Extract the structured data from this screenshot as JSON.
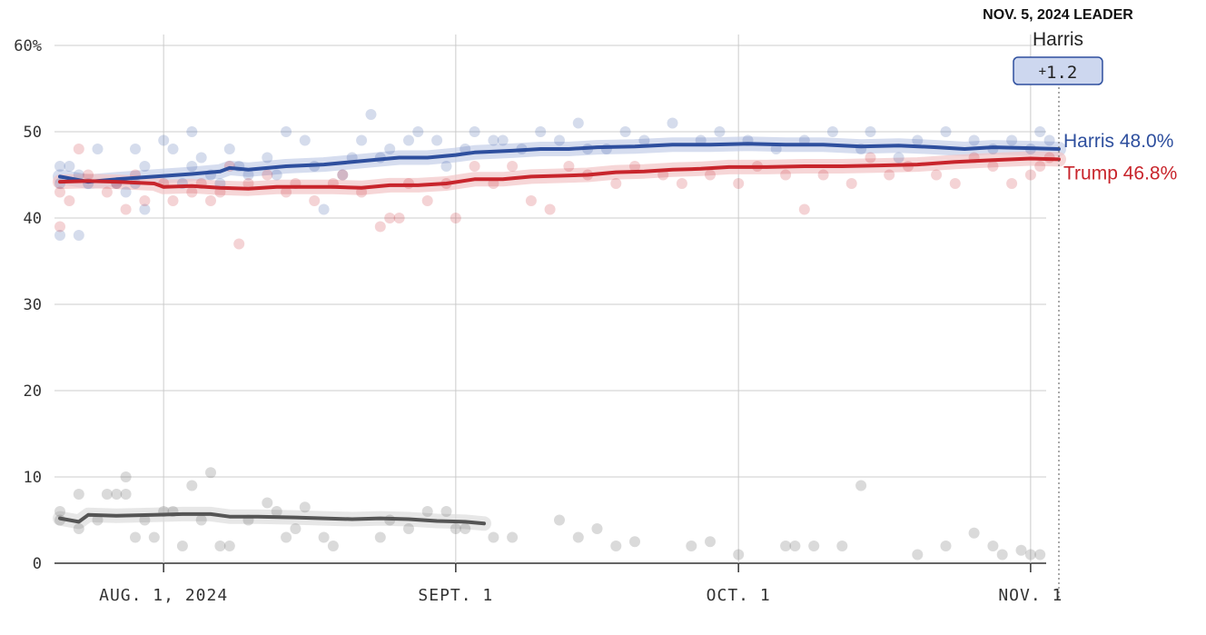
{
  "leader": {
    "heading": "NOV. 5, 2024 LEADER",
    "name": "Harris",
    "margin_sign": "+",
    "margin_value": "1.2"
  },
  "chart_data": {
    "type": "line",
    "title": "",
    "xlabel": "",
    "ylabel": "",
    "x_start": "2024-07-21",
    "x_end": "2024-11-04",
    "ylim": [
      0,
      60
    ],
    "y_ticks": [
      0,
      10,
      20,
      30,
      40,
      50,
      60
    ],
    "y_tick_labels": [
      "0",
      "10",
      "20",
      "30",
      "40",
      "50",
      "60%"
    ],
    "x_ticks": [
      {
        "date": "2024-08-01",
        "label": "AUG. 1, 2024"
      },
      {
        "date": "2024-09-01",
        "label": "SEPT. 1"
      },
      {
        "date": "2024-10-01",
        "label": "OCT. 1"
      },
      {
        "date": "2024-11-01",
        "label": "NOV. 1"
      }
    ],
    "grid": true,
    "series": [
      {
        "name": "Harris",
        "end_label": "Harris 48.0%",
        "color": "#2e4f9e",
        "band_color": "#c5cfe8",
        "points": [
          [
            "2024-07-21",
            44.8
          ],
          [
            "2024-07-24",
            44.2
          ],
          [
            "2024-07-27",
            44.5
          ],
          [
            "2024-07-31",
            44.8
          ],
          [
            "2024-08-04",
            45.1
          ],
          [
            "2024-08-07",
            45.4
          ],
          [
            "2024-08-08",
            45.8
          ],
          [
            "2024-08-10",
            45.6
          ],
          [
            "2024-08-14",
            46.0
          ],
          [
            "2024-08-18",
            46.2
          ],
          [
            "2024-08-21",
            46.5
          ],
          [
            "2024-08-24",
            46.8
          ],
          [
            "2024-08-26",
            47.0
          ],
          [
            "2024-08-29",
            47.0
          ],
          [
            "2024-09-01",
            47.3
          ],
          [
            "2024-09-03",
            47.6
          ],
          [
            "2024-09-07",
            47.8
          ],
          [
            "2024-09-10",
            48.0
          ],
          [
            "2024-09-13",
            48.0
          ],
          [
            "2024-09-16",
            48.2
          ],
          [
            "2024-09-20",
            48.3
          ],
          [
            "2024-09-24",
            48.5
          ],
          [
            "2024-09-28",
            48.5
          ],
          [
            "2024-10-02",
            48.6
          ],
          [
            "2024-10-06",
            48.5
          ],
          [
            "2024-10-10",
            48.5
          ],
          [
            "2024-10-14",
            48.3
          ],
          [
            "2024-10-18",
            48.4
          ],
          [
            "2024-10-22",
            48.2
          ],
          [
            "2024-10-25",
            48.0
          ],
          [
            "2024-10-28",
            48.2
          ],
          [
            "2024-11-01",
            48.1
          ],
          [
            "2024-11-04",
            48.0
          ]
        ],
        "polls": [
          [
            "2024-07-21",
            46
          ],
          [
            "2024-07-21",
            44
          ],
          [
            "2024-07-21",
            38
          ],
          [
            "2024-07-22",
            46
          ],
          [
            "2024-07-23",
            45
          ],
          [
            "2024-07-23",
            38
          ],
          [
            "2024-07-24",
            44
          ],
          [
            "2024-07-25",
            48
          ],
          [
            "2024-07-27",
            44
          ],
          [
            "2024-07-28",
            43
          ],
          [
            "2024-07-29",
            48
          ],
          [
            "2024-07-29",
            44
          ],
          [
            "2024-07-30",
            46
          ],
          [
            "2024-07-30",
            41
          ],
          [
            "2024-08-01",
            49
          ],
          [
            "2024-08-02",
            48
          ],
          [
            "2024-08-03",
            44
          ],
          [
            "2024-08-04",
            50
          ],
          [
            "2024-08-04",
            46
          ],
          [
            "2024-08-05",
            47
          ],
          [
            "2024-08-06",
            45
          ],
          [
            "2024-08-07",
            44
          ],
          [
            "2024-08-08",
            48
          ],
          [
            "2024-08-09",
            46
          ],
          [
            "2024-08-10",
            45
          ],
          [
            "2024-08-12",
            47
          ],
          [
            "2024-08-13",
            45
          ],
          [
            "2024-08-14",
            50
          ],
          [
            "2024-08-16",
            49
          ],
          [
            "2024-08-17",
            46
          ],
          [
            "2024-08-18",
            41
          ],
          [
            "2024-08-20",
            45
          ],
          [
            "2024-08-21",
            47
          ],
          [
            "2024-08-22",
            49
          ],
          [
            "2024-08-23",
            52
          ],
          [
            "2024-08-24",
            47
          ],
          [
            "2024-08-25",
            48
          ],
          [
            "2024-08-27",
            49
          ],
          [
            "2024-08-28",
            50
          ],
          [
            "2024-08-30",
            49
          ],
          [
            "2024-08-31",
            46
          ],
          [
            "2024-09-02",
            48
          ],
          [
            "2024-09-03",
            50
          ],
          [
            "2024-09-05",
            49
          ],
          [
            "2024-09-06",
            49
          ],
          [
            "2024-09-08",
            48
          ],
          [
            "2024-09-10",
            50
          ],
          [
            "2024-09-12",
            49
          ],
          [
            "2024-09-14",
            51
          ],
          [
            "2024-09-15",
            48
          ],
          [
            "2024-09-17",
            48
          ],
          [
            "2024-09-19",
            50
          ],
          [
            "2024-09-21",
            49
          ],
          [
            "2024-09-24",
            51
          ],
          [
            "2024-09-27",
            49
          ],
          [
            "2024-09-29",
            50
          ],
          [
            "2024-10-02",
            49
          ],
          [
            "2024-10-05",
            48
          ],
          [
            "2024-10-08",
            49
          ],
          [
            "2024-10-11",
            50
          ],
          [
            "2024-10-14",
            48
          ],
          [
            "2024-10-15",
            50
          ],
          [
            "2024-10-18",
            47
          ],
          [
            "2024-10-20",
            49
          ],
          [
            "2024-10-23",
            50
          ],
          [
            "2024-10-26",
            49
          ],
          [
            "2024-10-28",
            48
          ],
          [
            "2024-10-30",
            49
          ],
          [
            "2024-11-01",
            48
          ],
          [
            "2024-11-02",
            50
          ],
          [
            "2024-11-03",
            49
          ]
        ]
      },
      {
        "name": "Trump",
        "end_label": "Trump 46.8%",
        "color": "#c8252c",
        "band_color": "#f2c4c6",
        "points": [
          [
            "2024-07-21",
            44.2
          ],
          [
            "2024-07-24",
            44.3
          ],
          [
            "2024-07-27",
            44.2
          ],
          [
            "2024-07-31",
            44.0
          ],
          [
            "2024-08-01",
            43.6
          ],
          [
            "2024-08-04",
            43.7
          ],
          [
            "2024-08-07",
            43.5
          ],
          [
            "2024-08-10",
            43.4
          ],
          [
            "2024-08-13",
            43.6
          ],
          [
            "2024-08-16",
            43.6
          ],
          [
            "2024-08-19",
            43.6
          ],
          [
            "2024-08-22",
            43.5
          ],
          [
            "2024-08-25",
            43.8
          ],
          [
            "2024-08-28",
            43.8
          ],
          [
            "2024-08-31",
            44.0
          ],
          [
            "2024-09-03",
            44.5
          ],
          [
            "2024-09-06",
            44.5
          ],
          [
            "2024-09-09",
            44.8
          ],
          [
            "2024-09-12",
            44.9
          ],
          [
            "2024-09-15",
            45.0
          ],
          [
            "2024-09-18",
            45.3
          ],
          [
            "2024-09-21",
            45.4
          ],
          [
            "2024-09-24",
            45.6
          ],
          [
            "2024-09-27",
            45.7
          ],
          [
            "2024-09-30",
            45.9
          ],
          [
            "2024-10-04",
            45.9
          ],
          [
            "2024-10-08",
            46.0
          ],
          [
            "2024-10-12",
            46.0
          ],
          [
            "2024-10-16",
            46.1
          ],
          [
            "2024-10-20",
            46.2
          ],
          [
            "2024-10-24",
            46.5
          ],
          [
            "2024-10-28",
            46.7
          ],
          [
            "2024-11-01",
            46.9
          ],
          [
            "2024-11-04",
            46.8
          ]
        ],
        "polls": [
          [
            "2024-07-21",
            43
          ],
          [
            "2024-07-21",
            39
          ],
          [
            "2024-07-22",
            42
          ],
          [
            "2024-07-23",
            48
          ],
          [
            "2024-07-24",
            45
          ],
          [
            "2024-07-26",
            43
          ],
          [
            "2024-07-27",
            44
          ],
          [
            "2024-07-28",
            41
          ],
          [
            "2024-07-29",
            45
          ],
          [
            "2024-07-30",
            42
          ],
          [
            "2024-08-01",
            44
          ],
          [
            "2024-08-02",
            42
          ],
          [
            "2024-08-04",
            43
          ],
          [
            "2024-08-05",
            44
          ],
          [
            "2024-08-06",
            42
          ],
          [
            "2024-08-07",
            43
          ],
          [
            "2024-08-08",
            46
          ],
          [
            "2024-08-09",
            37
          ],
          [
            "2024-08-10",
            44
          ],
          [
            "2024-08-12",
            45
          ],
          [
            "2024-08-14",
            43
          ],
          [
            "2024-08-15",
            44
          ],
          [
            "2024-08-17",
            42
          ],
          [
            "2024-08-19",
            44
          ],
          [
            "2024-08-20",
            45
          ],
          [
            "2024-08-22",
            43
          ],
          [
            "2024-08-24",
            39
          ],
          [
            "2024-08-25",
            40
          ],
          [
            "2024-08-26",
            40
          ],
          [
            "2024-08-27",
            44
          ],
          [
            "2024-08-29",
            42
          ],
          [
            "2024-08-31",
            44
          ],
          [
            "2024-09-01",
            40
          ],
          [
            "2024-09-03",
            46
          ],
          [
            "2024-09-05",
            44
          ],
          [
            "2024-09-07",
            46
          ],
          [
            "2024-09-09",
            42
          ],
          [
            "2024-09-11",
            41
          ],
          [
            "2024-09-13",
            46
          ],
          [
            "2024-09-15",
            45
          ],
          [
            "2024-09-18",
            44
          ],
          [
            "2024-09-20",
            46
          ],
          [
            "2024-09-23",
            45
          ],
          [
            "2024-09-25",
            44
          ],
          [
            "2024-09-28",
            45
          ],
          [
            "2024-10-01",
            44
          ],
          [
            "2024-10-03",
            46
          ],
          [
            "2024-10-06",
            45
          ],
          [
            "2024-10-08",
            41
          ],
          [
            "2024-10-10",
            45
          ],
          [
            "2024-10-13",
            44
          ],
          [
            "2024-10-15",
            47
          ],
          [
            "2024-10-17",
            45
          ],
          [
            "2024-10-19",
            46
          ],
          [
            "2024-10-22",
            45
          ],
          [
            "2024-10-24",
            44
          ],
          [
            "2024-10-26",
            47
          ],
          [
            "2024-10-28",
            46
          ],
          [
            "2024-10-30",
            44
          ],
          [
            "2024-11-01",
            45
          ],
          [
            "2024-11-02",
            46
          ],
          [
            "2024-11-03",
            47
          ]
        ]
      },
      {
        "name": "",
        "color": "#555555",
        "band_color": "#dddddd",
        "points": [
          [
            "2024-07-21",
            5.2
          ],
          [
            "2024-07-23",
            4.8
          ],
          [
            "2024-07-24",
            5.6
          ],
          [
            "2024-07-27",
            5.5
          ],
          [
            "2024-07-31",
            5.6
          ],
          [
            "2024-08-03",
            5.7
          ],
          [
            "2024-08-06",
            5.7
          ],
          [
            "2024-08-08",
            5.4
          ],
          [
            "2024-08-11",
            5.4
          ],
          [
            "2024-08-15",
            5.3
          ],
          [
            "2024-08-18",
            5.2
          ],
          [
            "2024-08-21",
            5.1
          ],
          [
            "2024-08-24",
            5.2
          ],
          [
            "2024-08-27",
            5.1
          ],
          [
            "2024-08-30",
            4.9
          ],
          [
            "2024-09-02",
            4.8
          ],
          [
            "2024-09-04",
            4.6
          ]
        ],
        "polls": [
          [
            "2024-07-21",
            6
          ],
          [
            "2024-07-21",
            5
          ],
          [
            "2024-07-23",
            4
          ],
          [
            "2024-07-23",
            8
          ],
          [
            "2024-07-25",
            5
          ],
          [
            "2024-07-26",
            8
          ],
          [
            "2024-07-27",
            8
          ],
          [
            "2024-07-28",
            8
          ],
          [
            "2024-07-28",
            10
          ],
          [
            "2024-07-29",
            3
          ],
          [
            "2024-07-30",
            5
          ],
          [
            "2024-07-31",
            3
          ],
          [
            "2024-08-01",
            6
          ],
          [
            "2024-08-02",
            6
          ],
          [
            "2024-08-03",
            2
          ],
          [
            "2024-08-04",
            9
          ],
          [
            "2024-08-05",
            5
          ],
          [
            "2024-08-06",
            10.5
          ],
          [
            "2024-08-07",
            2
          ],
          [
            "2024-08-08",
            2
          ],
          [
            "2024-08-10",
            5
          ],
          [
            "2024-08-12",
            7
          ],
          [
            "2024-08-13",
            6
          ],
          [
            "2024-08-14",
            3
          ],
          [
            "2024-08-15",
            4
          ],
          [
            "2024-08-16",
            6.5
          ],
          [
            "2024-08-18",
            3
          ],
          [
            "2024-08-19",
            2
          ],
          [
            "2024-08-24",
            3
          ],
          [
            "2024-08-25",
            5
          ],
          [
            "2024-08-27",
            4
          ],
          [
            "2024-08-29",
            6
          ],
          [
            "2024-08-31",
            6
          ],
          [
            "2024-09-01",
            4
          ],
          [
            "2024-09-02",
            4
          ],
          [
            "2024-09-05",
            3
          ],
          [
            "2024-09-07",
            3
          ],
          [
            "2024-09-12",
            5
          ],
          [
            "2024-09-14",
            3
          ],
          [
            "2024-09-16",
            4
          ],
          [
            "2024-09-18",
            2
          ],
          [
            "2024-09-20",
            2.5
          ],
          [
            "2024-09-26",
            2
          ],
          [
            "2024-09-28",
            2.5
          ],
          [
            "2024-10-01",
            1
          ],
          [
            "2024-10-06",
            2
          ],
          [
            "2024-10-07",
            2
          ],
          [
            "2024-10-09",
            2
          ],
          [
            "2024-10-12",
            2
          ],
          [
            "2024-10-14",
            9
          ],
          [
            "2024-10-20",
            1
          ],
          [
            "2024-10-23",
            2
          ],
          [
            "2024-10-26",
            3.5
          ],
          [
            "2024-10-28",
            2
          ],
          [
            "2024-10-29",
            1
          ],
          [
            "2024-10-31",
            1.5
          ],
          [
            "2024-11-01",
            1
          ],
          [
            "2024-11-02",
            1
          ]
        ]
      }
    ]
  }
}
